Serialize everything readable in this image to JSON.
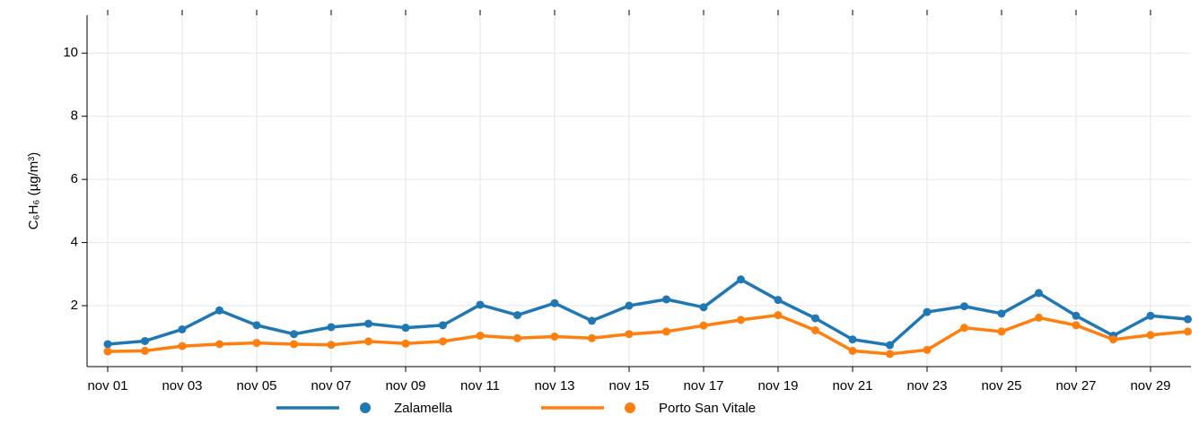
{
  "chart_data": {
    "type": "line",
    "y_label": "C₆H₆ (µg/m³)",
    "categories": [
      "nov 01",
      null,
      "nov 03",
      null,
      "nov 05",
      null,
      "nov 07",
      null,
      "nov 09",
      null,
      "nov 11",
      null,
      "nov 13",
      null,
      "nov 15",
      null,
      "nov 17",
      null,
      "nov 19",
      null,
      "nov 21",
      null,
      "nov 23",
      null,
      "nov 25",
      null,
      "nov 27",
      null,
      "nov 29",
      null
    ],
    "series": [
      {
        "name": "Zalamella",
        "color": "#1f77b4",
        "values": [
          0.78,
          0.88,
          1.25,
          1.85,
          1.38,
          1.1,
          1.32,
          1.43,
          1.3,
          1.38,
          2.03,
          1.7,
          2.08,
          1.52,
          2.0,
          2.2,
          1.95,
          2.83,
          2.18,
          1.6,
          0.93,
          0.75,
          1.8,
          1.98,
          1.75,
          2.4,
          1.68,
          1.05,
          1.68,
          1.57
        ]
      },
      {
        "name": "Porto San Vitale",
        "color": "#ff7f0e",
        "values": [
          0.55,
          0.57,
          0.72,
          0.78,
          0.82,
          0.78,
          0.76,
          0.87,
          0.8,
          0.87,
          1.05,
          0.97,
          1.02,
          0.97,
          1.1,
          1.18,
          1.37,
          1.55,
          1.7,
          1.22,
          0.57,
          0.47,
          0.6,
          1.3,
          1.18,
          1.62,
          1.38,
          0.93,
          1.07,
          1.18
        ]
      }
    ],
    "ylim": [
      0.07,
      11.2
    ],
    "yticks": [
      2,
      4,
      6,
      8,
      10
    ],
    "grid": true,
    "legend": "bottom"
  }
}
